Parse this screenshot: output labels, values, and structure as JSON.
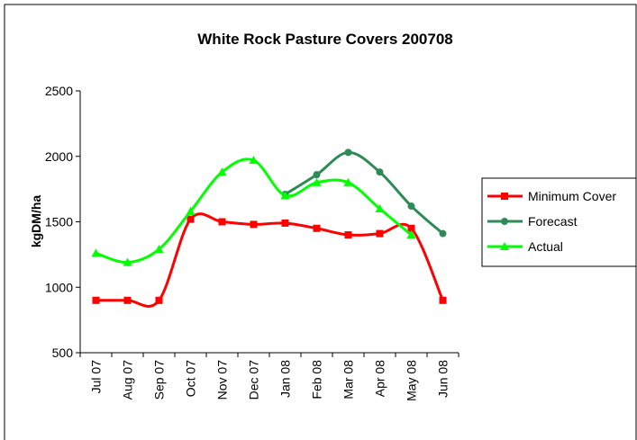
{
  "chart_data": {
    "type": "line",
    "title": "White Rock Pasture Covers 200708",
    "xlabel": "",
    "ylabel": "kgDM/ha",
    "categories": [
      "Jul 07",
      "Aug 07",
      "Sep 07",
      "Oct 07",
      "Nov 07",
      "Dec 07",
      "Jan 08",
      "Feb 08",
      "Mar 08",
      "Apr 08",
      "May 08",
      "Jun 08"
    ],
    "ylim": [
      500,
      2500
    ],
    "yticks": [
      "500",
      "1000",
      "1500",
      "2000",
      "2500"
    ],
    "grid": false,
    "legend_position": "right",
    "series": [
      {
        "name": "Minimum Cover",
        "color": "#ff0000",
        "marker": "square",
        "values": [
          900,
          900,
          900,
          1520,
          1500,
          1480,
          1490,
          1450,
          1400,
          1410,
          1450,
          900
        ]
      },
      {
        "name": "Forecast",
        "color": "#2e8b57",
        "marker": "circle",
        "values": [
          null,
          null,
          null,
          null,
          null,
          null,
          1710,
          1860,
          2030,
          1880,
          1620,
          1410
        ]
      },
      {
        "name": "Actual",
        "color": "#00ff00",
        "marker": "triangle",
        "values": [
          1260,
          1190,
          1290,
          1580,
          1880,
          1970,
          1700,
          1800,
          1800,
          1600,
          1400,
          null
        ]
      }
    ]
  }
}
